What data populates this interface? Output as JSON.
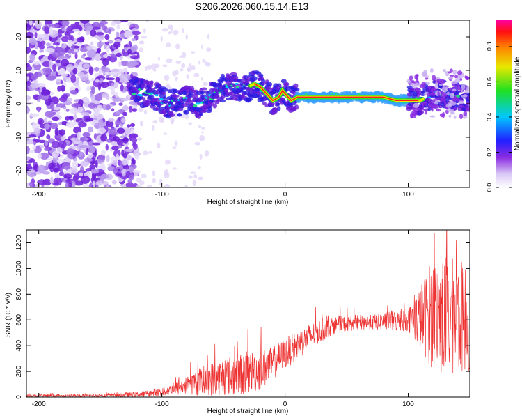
{
  "title": "S206.2026.060.15.14.E13",
  "chart_data": [
    {
      "type": "heatmap",
      "xlabel": "Height of straight line (km)",
      "ylabel": "Frequency (Hz)",
      "xlim": [
        -210,
        150
      ],
      "ylim": [
        -25,
        25
      ],
      "xticks": [
        -200,
        -100,
        0,
        100
      ],
      "yticks": [
        -20,
        -10,
        0,
        10,
        20
      ],
      "ridge": [
        [
          -125,
          4
        ],
        [
          -110,
          3
        ],
        [
          -95,
          0
        ],
        [
          -80,
          1
        ],
        [
          -70,
          0
        ],
        [
          -60,
          2
        ],
        [
          -50,
          5
        ],
        [
          -40,
          5
        ],
        [
          -30,
          5
        ],
        [
          -25,
          6
        ],
        [
          -20,
          5
        ],
        [
          -15,
          3
        ],
        [
          -10,
          1
        ],
        [
          -5,
          2
        ],
        [
          -2,
          4
        ],
        [
          0,
          3
        ],
        [
          5,
          1
        ],
        [
          10,
          2
        ],
        [
          20,
          2
        ],
        [
          40,
          2
        ],
        [
          60,
          2
        ],
        [
          80,
          2
        ],
        [
          90,
          1
        ],
        [
          100,
          1
        ],
        [
          110,
          1
        ],
        [
          120,
          3
        ],
        [
          130,
          3
        ],
        [
          140,
          2
        ],
        [
          150,
          2
        ]
      ],
      "colorbar": {
        "label": "Normalized spectral amplitude",
        "range": [
          0.0,
          0.95
        ],
        "ticks": [
          "0.0",
          "0.2",
          "0.4",
          "0.6",
          "0.8"
        ]
      }
    },
    {
      "type": "line",
      "xlabel": "Height of straight line (km)",
      "ylabel": "SNR (10 * v/v)",
      "xlim": [
        -210,
        150
      ],
      "ylim": [
        0,
        1300
      ],
      "xticks": [
        -200,
        -100,
        0,
        100
      ],
      "yticks": [
        0,
        200,
        400,
        600,
        800,
        1000,
        1200
      ],
      "color": "#ee3333",
      "envelope": {
        "x": [
          -210,
          -160,
          -120,
          -100,
          -90,
          -80,
          -70,
          -60,
          -50,
          -40,
          -30,
          -20,
          -10,
          0,
          10,
          20,
          30,
          40,
          50,
          60,
          70,
          80,
          90,
          100,
          110,
          120,
          130,
          140,
          150
        ],
        "base": [
          10,
          10,
          20,
          40,
          60,
          90,
          120,
          140,
          160,
          170,
          190,
          210,
          260,
          340,
          400,
          470,
          520,
          560,
          570,
          580,
          580,
          590,
          590,
          600,
          620,
          650,
          620,
          620,
          620
        ],
        "spread": [
          10,
          12,
          20,
          35,
          50,
          70,
          110,
          130,
          150,
          160,
          170,
          160,
          130,
          120,
          120,
          100,
          90,
          70,
          60,
          60,
          60,
          70,
          80,
          90,
          250,
          450,
          480,
          450,
          420
        ]
      }
    }
  ]
}
